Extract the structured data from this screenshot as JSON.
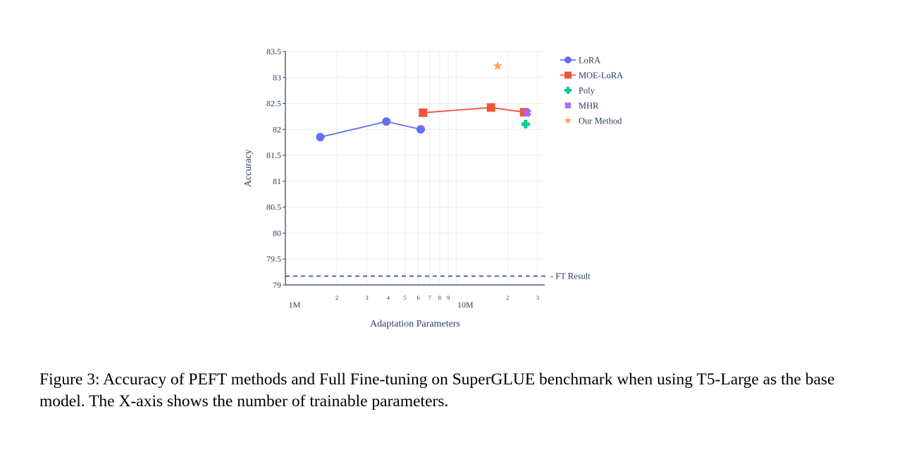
{
  "chart_data": {
    "type": "scatter",
    "xlabel": "Adaptation Parameters",
    "ylabel": "Accuracy",
    "x_scale": "log",
    "xlim": [
      1000000,
      33000000
    ],
    "ylim": [
      79,
      83.5
    ],
    "x_major_ticks": [
      {
        "value": 1000000,
        "label": "1M"
      },
      {
        "value": 10000000,
        "label": "10M"
      }
    ],
    "x_minor_ticks": [
      {
        "value": 2000000,
        "label": "2"
      },
      {
        "value": 3000000,
        "label": "3"
      },
      {
        "value": 4000000,
        "label": "4"
      },
      {
        "value": 5000000,
        "label": "5"
      },
      {
        "value": 6000000,
        "label": "6"
      },
      {
        "value": 7000000,
        "label": "7"
      },
      {
        "value": 8000000,
        "label": "8"
      },
      {
        "value": 9000000,
        "label": "9"
      },
      {
        "value": 20000000,
        "label": "2"
      },
      {
        "value": 30000000,
        "label": "3"
      }
    ],
    "y_ticks": [
      {
        "value": 79,
        "label": "79"
      },
      {
        "value": 79.5,
        "label": "79.5"
      },
      {
        "value": 80,
        "label": "80"
      },
      {
        "value": 80.5,
        "label": "80.5"
      },
      {
        "value": 81,
        "label": "81"
      },
      {
        "value": 81.5,
        "label": "81.5"
      },
      {
        "value": 82,
        "label": "82"
      },
      {
        "value": 82.5,
        "label": "82.5"
      },
      {
        "value": 83,
        "label": "83"
      },
      {
        "value": 83.5,
        "label": "83.5"
      }
    ],
    "grid": true,
    "legend_position": "right",
    "series": [
      {
        "name": "LoRA",
        "color": "#636efa",
        "marker": "circle",
        "mode": "lines+markers",
        "x": [
          1600000,
          3900000,
          6200000
        ],
        "y": [
          81.85,
          82.15,
          82.0
        ]
      },
      {
        "name": "MOE-LoRA",
        "color": "#ef553b",
        "marker": "square",
        "mode": "lines+markers",
        "x": [
          6400000,
          16000000,
          25000000
        ],
        "y": [
          82.32,
          82.42,
          82.33
        ]
      },
      {
        "name": "Poly",
        "color": "#00cc96",
        "marker": "cross",
        "mode": "markers",
        "x": [
          25500000
        ],
        "y": [
          82.1
        ]
      },
      {
        "name": "MHR",
        "color": "#ab63fa",
        "marker": "x",
        "mode": "markers",
        "x": [
          26000000
        ],
        "y": [
          82.32
        ]
      },
      {
        "name": "Our Method",
        "color": "#ffa15a",
        "marker": "star",
        "mode": "markers",
        "x": [
          17500000
        ],
        "y": [
          83.22
        ]
      }
    ],
    "reference_line": {
      "label": "FT Result",
      "y": 79.17,
      "style": "dashed",
      "color": "#2a3f5f"
    }
  },
  "caption": "Figure 3: Accuracy of PEFT methods and Full Fine-tuning on SuperGLUE benchmark when using T5-Large as the base model. The X-axis shows the number of trainable parameters."
}
